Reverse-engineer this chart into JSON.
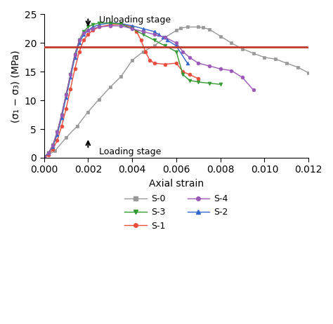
{
  "xlabel": "Axial strain",
  "ylabel": "(σ₁ − σ₃) (MPa)",
  "xlim": [
    0.0,
    0.012
  ],
  "ylim": [
    0,
    25
  ],
  "yticks": [
    0,
    5,
    10,
    15,
    20,
    25
  ],
  "xticks": [
    0.0,
    0.002,
    0.004,
    0.006,
    0.008,
    0.01,
    0.012
  ],
  "hline_y": 19.3,
  "hline_color": "#c0392b",
  "S0_color": "#999999",
  "S1_color": "#e74c3c",
  "S2_color": "#3366cc",
  "S3_color": "#339933",
  "S4_color": "#9b59b6",
  "S0_x": [
    0.0,
    0.0005,
    0.001,
    0.0015,
    0.002,
    0.0025,
    0.003,
    0.0035,
    0.004,
    0.0045,
    0.005,
    0.0055,
    0.006,
    0.0062,
    0.0065,
    0.007,
    0.0072,
    0.0075,
    0.008,
    0.0085,
    0.009,
    0.0095,
    0.01,
    0.0105,
    0.011,
    0.0115,
    0.012
  ],
  "S0_y": [
    0.1,
    1.2,
    3.5,
    5.5,
    8.0,
    10.2,
    12.3,
    14.2,
    17.0,
    18.5,
    19.5,
    21.0,
    22.2,
    22.6,
    22.8,
    22.8,
    22.7,
    22.4,
    21.2,
    20.0,
    19.0,
    18.2,
    17.5,
    17.2,
    16.5,
    15.8,
    14.8
  ],
  "S1_x": [
    0.0,
    0.0002,
    0.0004,
    0.0006,
    0.0008,
    0.001,
    0.0012,
    0.0014,
    0.0016,
    0.0018,
    0.002,
    0.0022,
    0.0025,
    0.003,
    0.0035,
    0.004,
    0.0042,
    0.0044,
    0.0046,
    0.0048,
    0.005,
    0.0055,
    0.006,
    0.0063,
    0.0066,
    0.007
  ],
  "S1_y": [
    0.1,
    0.5,
    1.5,
    3.0,
    5.5,
    8.5,
    12.0,
    15.5,
    18.5,
    20.5,
    21.5,
    22.2,
    22.8,
    23.2,
    23.3,
    22.8,
    22.0,
    20.5,
    18.5,
    17.0,
    16.5,
    16.3,
    16.5,
    15.0,
    14.5,
    13.8
  ],
  "S2_x": [
    0.0,
    0.0002,
    0.0004,
    0.0006,
    0.0008,
    0.001,
    0.0012,
    0.0014,
    0.0016,
    0.0018,
    0.002,
    0.0022,
    0.0025,
    0.003,
    0.0035,
    0.004,
    0.0045,
    0.005,
    0.0052,
    0.0054,
    0.0056,
    0.006,
    0.0065
  ],
  "S2_y": [
    0.1,
    0.8,
    2.0,
    4.0,
    7.0,
    10.5,
    14.0,
    17.5,
    20.0,
    21.5,
    22.2,
    22.8,
    23.2,
    23.5,
    23.4,
    23.0,
    22.5,
    22.0,
    21.5,
    21.0,
    20.5,
    19.5,
    16.5
  ],
  "S3_x": [
    0.0,
    0.0002,
    0.0004,
    0.0006,
    0.0008,
    0.001,
    0.0012,
    0.0014,
    0.0016,
    0.0018,
    0.002,
    0.0022,
    0.0025,
    0.003,
    0.0035,
    0.004,
    0.0045,
    0.005,
    0.0055,
    0.006,
    0.0063,
    0.0066,
    0.007,
    0.0075,
    0.008
  ],
  "S3_y": [
    0.1,
    0.8,
    2.2,
    4.5,
    7.5,
    11.0,
    14.5,
    18.0,
    20.5,
    22.0,
    22.8,
    23.2,
    23.5,
    23.5,
    23.3,
    22.5,
    21.5,
    20.5,
    19.5,
    18.5,
    14.5,
    13.5,
    13.2,
    13.0,
    12.8
  ],
  "S4_x": [
    0.0,
    0.0002,
    0.0004,
    0.0006,
    0.0008,
    0.001,
    0.0012,
    0.0014,
    0.0016,
    0.0018,
    0.002,
    0.0022,
    0.0025,
    0.003,
    0.0035,
    0.004,
    0.0045,
    0.005,
    0.0055,
    0.006,
    0.0063,
    0.0066,
    0.007,
    0.0075,
    0.008,
    0.0085,
    0.009,
    0.0095
  ],
  "S4_y": [
    0.1,
    0.8,
    2.2,
    4.5,
    7.5,
    11.0,
    14.5,
    18.0,
    20.5,
    21.8,
    22.2,
    22.5,
    22.8,
    23.0,
    23.0,
    22.5,
    22.0,
    21.5,
    21.0,
    20.0,
    18.5,
    17.5,
    16.5,
    16.0,
    15.5,
    15.2,
    14.0,
    11.8
  ]
}
